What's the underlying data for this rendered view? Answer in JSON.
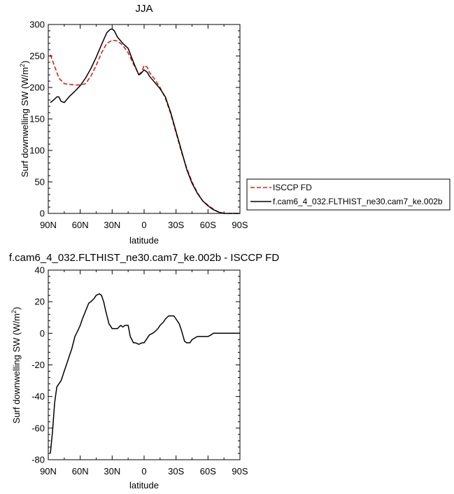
{
  "chart_data": [
    {
      "type": "line",
      "title": "JJA",
      "xlabel": "latitude",
      "ylabel": "Surf downwelling SW (W/m",
      "ylabel_sup": "2",
      "ylabel_close": ")",
      "xlim": [
        90,
        -90
      ],
      "ylim": [
        0,
        300
      ],
      "x_ticks": [
        {
          "value": 90,
          "label": "90N"
        },
        {
          "value": 60,
          "label": "60N"
        },
        {
          "value": 30,
          "label": "30N"
        },
        {
          "value": 0,
          "label": "0"
        },
        {
          "value": -30,
          "label": "30S"
        },
        {
          "value": -60,
          "label": "60S"
        },
        {
          "value": -90,
          "label": "90S"
        }
      ],
      "y_ticks": [
        0,
        50,
        100,
        150,
        200,
        250,
        300
      ],
      "legend_position": "right",
      "series": [
        {
          "name": "ISCCP FD",
          "color": "#e41a1c",
          "dash": "dashed",
          "x": [
            88,
            85,
            80,
            75,
            70,
            65,
            60,
            55,
            50,
            45,
            40,
            35,
            30,
            25,
            20,
            15,
            10,
            5,
            2,
            0,
            -3,
            -5,
            -10,
            -15,
            -20,
            -25,
            -30,
            -35,
            -40,
            -45,
            -50,
            -55,
            -60,
            -65,
            -70,
            -75,
            -80,
            -85,
            -90
          ],
          "values": [
            252,
            238,
            215,
            206,
            205,
            204,
            204,
            206,
            218,
            235,
            255,
            270,
            275,
            274,
            267,
            255,
            237,
            221,
            225,
            235,
            232,
            224,
            213,
            200,
            183,
            158,
            128,
            98,
            72,
            50,
            33,
            20,
            13,
            7,
            2,
            0,
            0,
            0,
            0
          ]
        },
        {
          "name": "f.cam6_4_032.FLTHIST_ne30.cam7_ke.002b",
          "color": "#000000",
          "dash": "solid",
          "x": [
            88,
            85,
            82,
            80,
            78,
            75,
            70,
            65,
            60,
            55,
            50,
            45,
            40,
            35,
            32,
            30,
            28,
            25,
            20,
            15,
            10,
            5,
            3,
            0,
            -3,
            -5,
            -10,
            -15,
            -20,
            -25,
            -30,
            -35,
            -40,
            -45,
            -50,
            -55,
            -60,
            -65,
            -70,
            -75,
            -80,
            -85,
            -90
          ],
          "values": [
            176,
            180,
            185,
            185,
            178,
            176,
            186,
            194,
            203,
            215,
            230,
            248,
            268,
            287,
            292,
            293,
            290,
            280,
            270,
            262,
            240,
            220,
            222,
            228,
            224,
            218,
            208,
            198,
            185,
            160,
            130,
            100,
            70,
            48,
            32,
            20,
            12,
            6,
            2,
            0,
            0,
            0,
            0
          ]
        }
      ]
    },
    {
      "type": "line",
      "title": "f.cam6_4_032.FLTHIST_ne30.cam7_ke.002b - ISCCP FD",
      "xlabel": "latitude",
      "ylabel": "Surf downwelling SW (W/m",
      "ylabel_sup": "2",
      "ylabel_close": ")",
      "xlim": [
        90,
        -90
      ],
      "ylim": [
        -80,
        40
      ],
      "x_ticks": [
        {
          "value": 90,
          "label": "90N"
        },
        {
          "value": 60,
          "label": "60N"
        },
        {
          "value": 30,
          "label": "30N"
        },
        {
          "value": 0,
          "label": "0"
        },
        {
          "value": -30,
          "label": "30S"
        },
        {
          "value": -60,
          "label": "60S"
        },
        {
          "value": -90,
          "label": "90S"
        }
      ],
      "y_ticks": [
        -80,
        -60,
        -40,
        -20,
        0,
        20,
        40
      ],
      "series": [
        {
          "color": "#000000",
          "dash": "solid",
          "x": [
            88,
            86,
            84,
            82,
            80,
            78,
            75,
            72,
            70,
            68,
            65,
            62,
            60,
            58,
            55,
            52,
            50,
            47,
            45,
            42,
            40,
            38,
            36,
            33,
            30,
            28,
            25,
            22,
            20,
            18,
            15,
            13,
            10,
            8,
            5,
            2,
            0,
            -3,
            -5,
            -8,
            -10,
            -13,
            -15,
            -18,
            -20,
            -23,
            -25,
            -28,
            -30,
            -33,
            -35,
            -38,
            -40,
            -43,
            -45,
            -50,
            -55,
            -60,
            -63,
            -65,
            -68,
            -70,
            -75,
            -80,
            -85,
            -90
          ],
          "values": [
            -76,
            -62,
            -44,
            -34,
            -32,
            -30,
            -24,
            -18,
            -14,
            -10,
            -2,
            2,
            5,
            9,
            14,
            19,
            20,
            22,
            24,
            25,
            24,
            20,
            14,
            6,
            3,
            3,
            3,
            5,
            4,
            5,
            5,
            -2,
            -6,
            -6,
            -7,
            -6,
            -6,
            -3,
            -1,
            0,
            1,
            3,
            5,
            7,
            9,
            11,
            11,
            11,
            9,
            6,
            2,
            -5,
            -6,
            -6,
            -4,
            -2,
            -2,
            -2,
            -1,
            0,
            0,
            0,
            0,
            0,
            0,
            0
          ]
        }
      ]
    }
  ]
}
